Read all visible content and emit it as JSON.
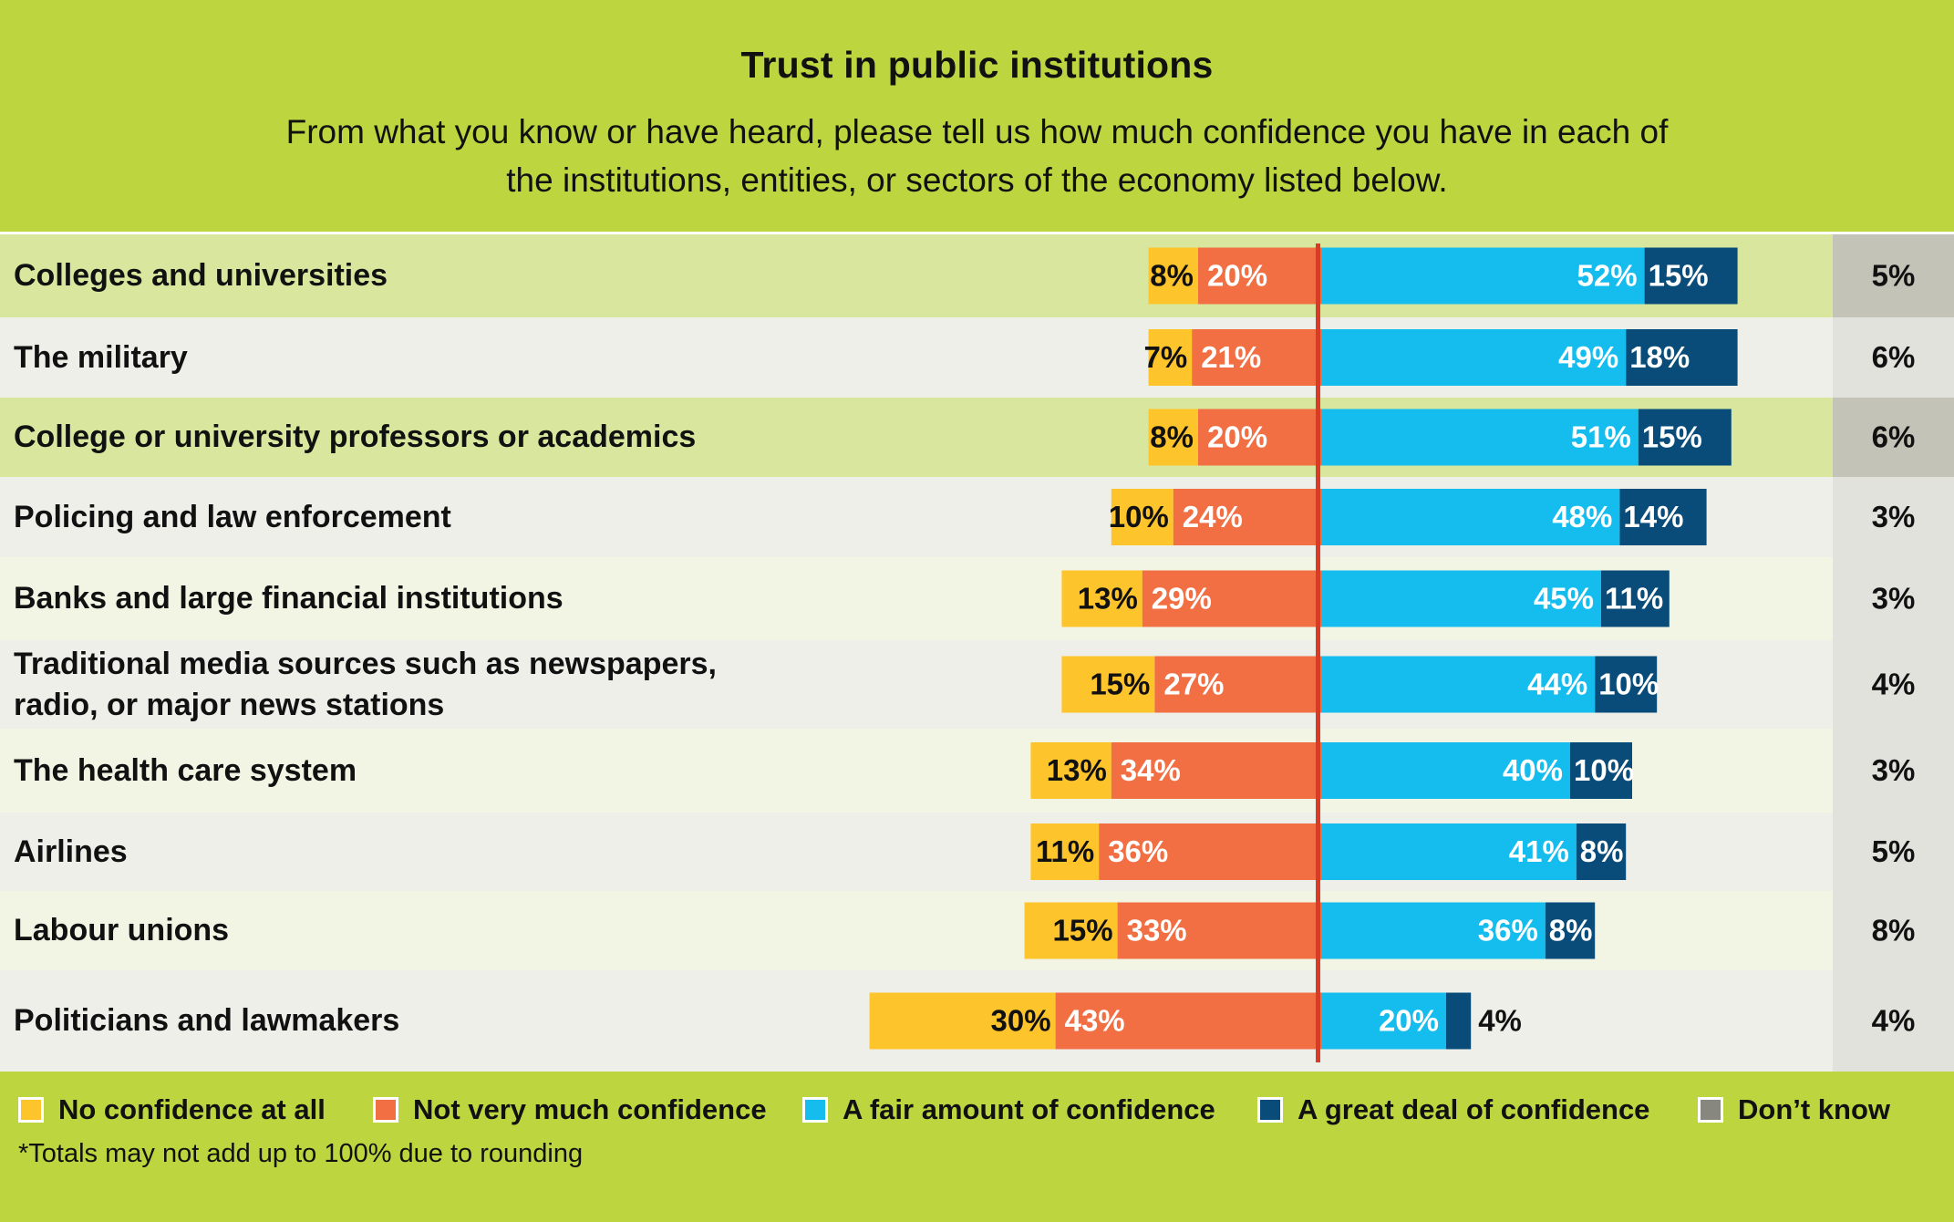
{
  "header": {
    "title": "Trust in public institutions",
    "subtitle": "From what you know or have heard, please tell us how much confidence you have in each of the institutions, entities, or sectors of the economy listed below."
  },
  "colors": {
    "no_confidence": "#fec42c",
    "not_very_much": "#f16f43",
    "fair_amount": "#15bdee",
    "great_deal": "#094c7a",
    "dont_know": "#878780",
    "center_line": "#d93b26",
    "background": "#bdd63f"
  },
  "chart_data": {
    "type": "bar",
    "orientation": "horizontal-diverging",
    "title": "Trust in public institutions",
    "categories": [
      "Colleges and universities",
      "The military",
      "College or university professors or academics",
      "Policing and law enforcement",
      "Banks and large financial institutions",
      "Traditional media sources such as newspapers, radio, or major news stations",
      "The health care system",
      "Airlines",
      "Labour unions",
      "Politicians and lawmakers"
    ],
    "series": [
      {
        "name": "No confidence at all",
        "values": [
          8,
          7,
          8,
          10,
          13,
          15,
          13,
          11,
          15,
          30
        ],
        "labels": [
          "8%",
          "7%",
          "8%",
          "10%",
          "13%",
          "15%",
          "13%",
          "11%",
          "15%",
          "30%"
        ]
      },
      {
        "name": "Not very much confidence",
        "values": [
          20,
          21,
          20,
          24,
          29,
          27,
          34,
          36,
          33,
          43
        ],
        "labels": [
          "20%",
          "21%",
          "20%",
          "24%",
          "29%",
          "27%",
          "34%",
          "36%",
          "33%",
          "43%"
        ]
      },
      {
        "name": "A fair amount of confidence",
        "values": [
          52,
          49,
          51,
          48,
          45,
          44,
          40,
          41,
          36,
          20
        ],
        "labels": [
          "52%",
          "49%",
          "51%",
          "48%",
          "45%",
          "44%",
          "40%",
          "41%",
          "36%",
          "20%"
        ]
      },
      {
        "name": "A great deal of confidence",
        "values": [
          15,
          18,
          15,
          14,
          11,
          10,
          10,
          8,
          8,
          4
        ],
        "labels": [
          "15%",
          "18%",
          "15%",
          "14%",
          "11%",
          "10%",
          "10%",
          "8%",
          "8%",
          "4%"
        ]
      },
      {
        "name": "Don’t know",
        "values": [
          5,
          6,
          6,
          3,
          3,
          4,
          3,
          5,
          8,
          4
        ],
        "labels": [
          "5%",
          "6%",
          "6%",
          "3%",
          "3%",
          "4%",
          "3%",
          "5%",
          "8%",
          "4%"
        ]
      }
    ],
    "highlighted_rows": [
      0,
      2
    ],
    "grid": false,
    "legend_position": "bottom"
  },
  "legend": {
    "items": [
      {
        "label": "No confidence at all",
        "color": "#fec42c"
      },
      {
        "label": "Not very much confidence",
        "color": "#f16f43"
      },
      {
        "label": "A fair amount of confidence",
        "color": "#15bdee"
      },
      {
        "label": "A great deal of confidence",
        "color": "#094c7a"
      },
      {
        "label": "Don’t know",
        "color": "#878780"
      }
    ],
    "footnote": "*Totals may not add up to 100% due to rounding"
  }
}
